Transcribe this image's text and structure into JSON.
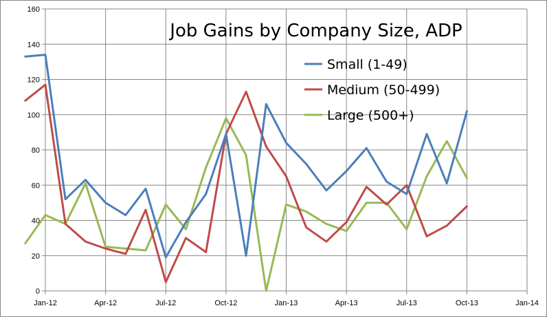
{
  "chart_data": {
    "type": "line",
    "title": "Job Gains by Company Size, ADP",
    "xlabel": "",
    "ylabel": "",
    "ylim": [
      0,
      160
    ],
    "y_ticks": [
      0,
      20,
      40,
      60,
      80,
      100,
      120,
      140,
      160
    ],
    "x_range": [
      "Jan-12",
      "Jan-14"
    ],
    "x_ticks": [
      "Jan-12",
      "Apr-12",
      "Jul-12",
      "Oct-12",
      "Jan-13",
      "Apr-13",
      "Jul-13",
      "Oct-13",
      "Jan-14"
    ],
    "legend_position": "top-right",
    "grid": true,
    "x_months": [
      "Dec-11",
      "Jan-12",
      "Feb-12",
      "Mar-12",
      "Apr-12",
      "May-12",
      "Jun-12",
      "Jul-12",
      "Aug-12",
      "Sep-12",
      "Oct-12",
      "Nov-12",
      "Dec-12",
      "Jan-13",
      "Feb-13",
      "Mar-13",
      "Apr-13",
      "May-13",
      "Jun-13",
      "Jul-13",
      "Aug-13",
      "Sep-13",
      "Oct-13"
    ],
    "series": [
      {
        "name": "Small (1-49)",
        "color": "#4a7ebb",
        "values": [
          133,
          134,
          52,
          63,
          50,
          43,
          58,
          19,
          39,
          55,
          89,
          20,
          106,
          84,
          72,
          57,
          68,
          81,
          62,
          55,
          89,
          61,
          102
        ]
      },
      {
        "name": "Medium (50-499)",
        "color": "#be4b48",
        "values": [
          108,
          117,
          38,
          28,
          24,
          21,
          46,
          5,
          30,
          22,
          89,
          113,
          82,
          65,
          36,
          28,
          39,
          59,
          49,
          60,
          31,
          37,
          48
        ]
      },
      {
        "name": "Large (500+)",
        "color": "#98b954",
        "values": [
          27,
          43,
          38,
          61,
          25,
          24,
          23,
          49,
          35,
          70,
          98,
          77,
          0,
          49,
          45,
          38,
          34,
          50,
          50,
          35,
          65,
          85,
          64
        ]
      }
    ]
  }
}
